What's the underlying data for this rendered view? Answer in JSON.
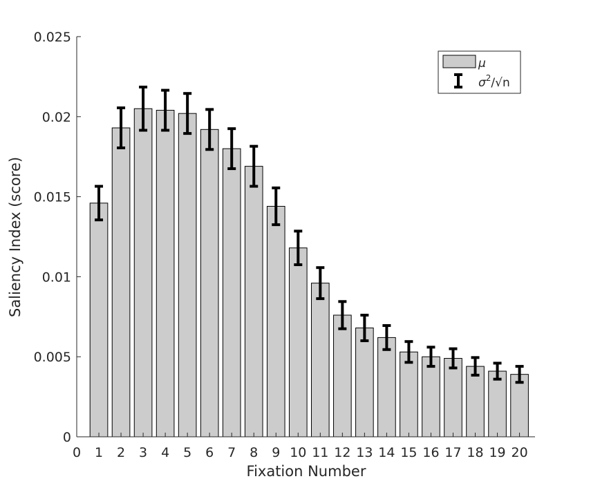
{
  "chart_data": {
    "type": "bar",
    "xlabel": "Fixation Number",
    "ylabel": "Saliency Index (score)",
    "xlim": [
      0,
      20.7
    ],
    "ylim": [
      0,
      0.025
    ],
    "x_ticks": [
      "0",
      "1",
      "2",
      "3",
      "4",
      "5",
      "6",
      "7",
      "8",
      "9",
      "10",
      "11",
      "12",
      "13",
      "14",
      "15",
      "16",
      "17",
      "18",
      "19",
      "20"
    ],
    "y_ticks": [
      "0",
      "0.005",
      "0.01",
      "0.015",
      "0.02",
      "0.025"
    ],
    "y_tick_values": [
      0,
      0.005,
      0.01,
      0.015,
      0.02,
      0.025
    ],
    "categories": [
      1,
      2,
      3,
      4,
      5,
      6,
      7,
      8,
      9,
      10,
      11,
      12,
      13,
      14,
      15,
      16,
      17,
      18,
      19,
      20
    ],
    "values": [
      0.0146,
      0.0193,
      0.0205,
      0.0204,
      0.0202,
      0.0192,
      0.018,
      0.0169,
      0.0144,
      0.0118,
      0.0096,
      0.0076,
      0.0068,
      0.0062,
      0.0053,
      0.005,
      0.0049,
      0.0044,
      0.0041,
      0.0039
    ],
    "errors": [
      0.00105,
      0.00125,
      0.00135,
      0.00125,
      0.00125,
      0.00125,
      0.00125,
      0.00125,
      0.00115,
      0.00105,
      0.00097,
      0.00085,
      0.0008,
      0.00075,
      0.00065,
      0.0006,
      0.0006,
      0.00055,
      0.0005,
      0.0005
    ],
    "bar_color": "#cccccc",
    "error_color": "#000000",
    "grid": false,
    "legend": {
      "placement": "top-right",
      "entries": [
        {
          "symbol": "bar",
          "label_main": "μ",
          "label_sup": "",
          "label_rest": ""
        },
        {
          "symbol": "errorbar",
          "label_main": "σ",
          "label_sup": "2",
          "label_rest": "/√n"
        }
      ]
    }
  }
}
